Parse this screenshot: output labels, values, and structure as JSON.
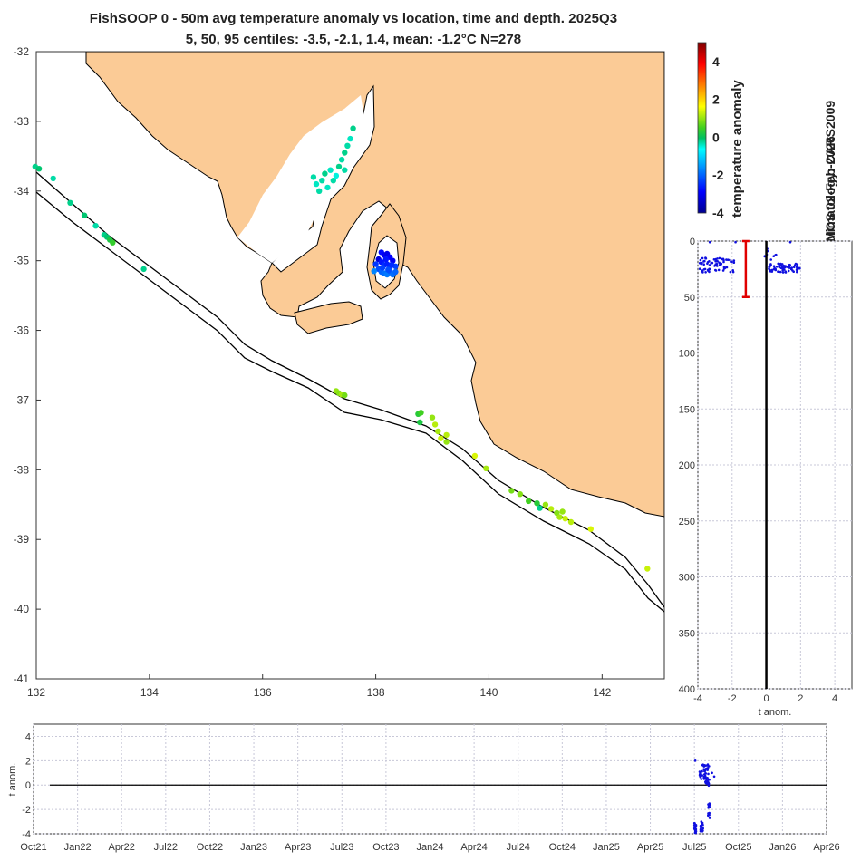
{
  "title": {
    "line1": "FishSOOP 0 - 50m avg temperature anomaly vs location, time and depth. 2025Q3",
    "line2": "5, 50, 95 centiles: -3.5, -2.1, 1.4, mean: -1.2°C N=278"
  },
  "credits": {
    "climatology": "climatology: CARS2009",
    "copyright": "© IMOS 02-Feb-2026"
  },
  "colors": {
    "land": "#fbcb96",
    "coast": "#000000",
    "points_profile": "#1010e0",
    "bar": "#e00000"
  },
  "chart_data": [
    {
      "type": "scatter",
      "name": "map",
      "xlim": [
        132,
        143.1
      ],
      "ylim": [
        -41,
        -32
      ],
      "xticks": [
        132,
        134,
        136,
        138,
        140,
        142
      ],
      "yticks": [
        -32,
        -33,
        -34,
        -35,
        -36,
        -37,
        -38,
        -39,
        -40,
        -41
      ],
      "grid": false,
      "points": [
        [
          131.98,
          -33.65,
          -0.2
        ],
        [
          132.05,
          -33.68,
          -0.1
        ],
        [
          132.3,
          -33.82,
          -0.3
        ],
        [
          132.6,
          -34.17,
          -0.2
        ],
        [
          132.85,
          -34.35,
          -0.1
        ],
        [
          133.05,
          -34.5,
          -0.3
        ],
        [
          133.2,
          -34.63,
          -0.2
        ],
        [
          133.25,
          -34.66,
          -0.1
        ],
        [
          133.3,
          -34.7,
          0.2
        ],
        [
          133.35,
          -34.74,
          0.4
        ],
        [
          133.9,
          -35.12,
          -0.2
        ],
        [
          136.9,
          -33.8,
          -0.3
        ],
        [
          136.95,
          -33.9,
          -0.4
        ],
        [
          137.05,
          -33.85,
          -0.3
        ],
        [
          137.1,
          -33.75,
          -0.2
        ],
        [
          137.2,
          -33.7,
          -0.4
        ],
        [
          137.25,
          -33.85,
          -0.3
        ],
        [
          137.35,
          -33.65,
          -0.2
        ],
        [
          137.4,
          -33.55,
          -0.3
        ],
        [
          137.45,
          -33.45,
          -0.2
        ],
        [
          137.5,
          -33.35,
          -0.3
        ],
        [
          137.55,
          -33.25,
          -0.4
        ],
        [
          137.6,
          -33.1,
          -0.2
        ],
        [
          137.3,
          -33.78,
          -0.5
        ],
        [
          137.45,
          -33.7,
          -0.3
        ],
        [
          137.15,
          -33.95,
          -0.4
        ],
        [
          137.0,
          -34.0,
          -0.3
        ],
        [
          138.1,
          -34.88,
          -2.8
        ],
        [
          138.15,
          -34.92,
          -3.0
        ],
        [
          138.2,
          -34.9,
          -3.1
        ],
        [
          138.25,
          -34.95,
          -2.9
        ],
        [
          138.05,
          -34.98,
          -3.2
        ],
        [
          138.1,
          -35.02,
          -2.7
        ],
        [
          138.15,
          -35.06,
          -2.5
        ],
        [
          138.2,
          -35.05,
          -2.6
        ],
        [
          138.25,
          -35.1,
          -2.4
        ],
        [
          138.3,
          -35.0,
          -3.0
        ],
        [
          138.35,
          -35.08,
          -2.3
        ],
        [
          138.05,
          -35.12,
          -2.2
        ],
        [
          138.1,
          -35.16,
          -2.0
        ],
        [
          138.15,
          -35.18,
          -1.9
        ],
        [
          138.2,
          -35.2,
          -1.8
        ],
        [
          138.25,
          -35.15,
          -2.1
        ],
        [
          138.3,
          -35.2,
          -1.9
        ],
        [
          138.35,
          -35.16,
          -2.0
        ],
        [
          137.97,
          -35.15,
          -1.7
        ],
        [
          138.0,
          -35.05,
          -2.4
        ],
        [
          138.12,
          -35.1,
          -2.3
        ],
        [
          138.18,
          -34.98,
          -2.7
        ],
        [
          138.28,
          -35.06,
          -2.5
        ],
        [
          138.22,
          -35.13,
          -2.2
        ],
        [
          137.3,
          -36.87,
          1.0
        ],
        [
          137.35,
          -36.9,
          0.9
        ],
        [
          137.4,
          -36.92,
          1.1
        ],
        [
          137.45,
          -36.93,
          0.8
        ],
        [
          138.75,
          -37.2,
          0.3
        ],
        [
          138.8,
          -37.18,
          0.5
        ],
        [
          138.78,
          -37.32,
          0.2
        ],
        [
          139.0,
          -37.25,
          1.0
        ],
        [
          139.05,
          -37.35,
          1.2
        ],
        [
          139.1,
          -37.45,
          1.1
        ],
        [
          139.15,
          -37.55,
          1.3
        ],
        [
          139.25,
          -37.5,
          1.2
        ],
        [
          139.25,
          -37.6,
          1.0
        ],
        [
          139.75,
          -37.8,
          1.4
        ],
        [
          139.95,
          -37.98,
          1.1
        ],
        [
          140.4,
          -38.3,
          0.8
        ],
        [
          140.55,
          -38.35,
          0.9
        ],
        [
          140.7,
          -38.45,
          0.5
        ],
        [
          140.85,
          -38.48,
          0.3
        ],
        [
          140.9,
          -38.55,
          -0.2
        ],
        [
          141.0,
          -38.5,
          1.0
        ],
        [
          141.1,
          -38.56,
          1.2
        ],
        [
          141.2,
          -38.62,
          0.9
        ],
        [
          141.25,
          -38.68,
          1.1
        ],
        [
          141.3,
          -38.6,
          1.0
        ],
        [
          141.35,
          -38.7,
          1.3
        ],
        [
          141.45,
          -38.75,
          1.2
        ],
        [
          141.8,
          -38.85,
          1.4
        ],
        [
          142.8,
          -39.42,
          1.3
        ]
      ]
    },
    {
      "type": "scatter",
      "name": "depth-profile",
      "xlabel": "t anom.",
      "xlim": [
        -4,
        5
      ],
      "ylim": [
        0,
        400
      ],
      "xticks": [
        -4,
        -2,
        0,
        2,
        4
      ],
      "yticks": [
        0,
        50,
        100,
        150,
        200,
        250,
        300,
        350,
        400
      ],
      "grid": true,
      "points_hint": "scatter of anomaly vs depth",
      "mean": -1.2,
      "mean_bar": [
        0,
        50
      ]
    },
    {
      "type": "scatter",
      "name": "time-series",
      "ylabel": "t anom.",
      "ylim": [
        -4,
        5
      ],
      "yticks": [
        4,
        2,
        0,
        -2,
        -4
      ],
      "xticks": [
        "Oct21",
        "Jan22",
        "Apr22",
        "Jul22",
        "Oct22",
        "Jan23",
        "Apr23",
        "Jul23",
        "Oct23",
        "Jan24",
        "Apr24",
        "Jul24",
        "Oct24",
        "Jan25",
        "Apr25",
        "Jul25",
        "Oct25",
        "Jan26",
        "Apr26"
      ],
      "grid": true
    },
    {
      "type": "heatmap",
      "name": "colorbar",
      "label": "temperature anomaly",
      "range": [
        -4,
        5
      ],
      "ticks": [
        4,
        2,
        0,
        -2,
        -4
      ]
    }
  ]
}
